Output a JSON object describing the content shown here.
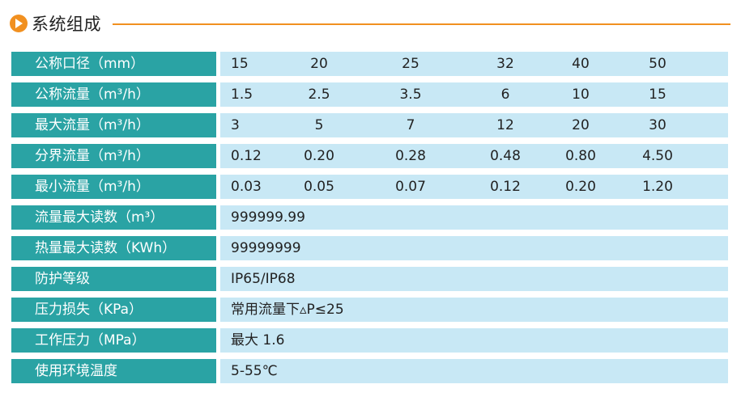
{
  "header": {
    "title": "系统组成",
    "accent_color": "#f19020",
    "icon": "play-circle-icon"
  },
  "table": {
    "label_bg": "#2aa3a4",
    "value_bg": "#c8e8f5",
    "rows": [
      {
        "label": "公称口径（mm）",
        "values": [
          "15",
          "20",
          "25",
          "32",
          "40",
          "50"
        ]
      },
      {
        "label": "公称流量（m³/h）",
        "values": [
          "1.5",
          "2.5",
          "3.5",
          "6",
          "10",
          "15"
        ]
      },
      {
        "label": "最大流量（m³/h）",
        "values": [
          "3",
          "5",
          "7",
          "12",
          "20",
          "30"
        ]
      },
      {
        "label": "分界流量（m³/h）",
        "values": [
          "0.12",
          "0.20",
          "0.28",
          "0.48",
          "0.80",
          "4.50"
        ]
      },
      {
        "label": "最小流量（m³/h）",
        "values": [
          "0.03",
          "0.05",
          "0.07",
          "0.12",
          "0.20",
          "1.20"
        ]
      },
      {
        "label": "流量最大读数（m³）",
        "value": "999999.99"
      },
      {
        "label": "热量最大读数（KWh）",
        "value": "99999999"
      },
      {
        "label": "防护等级",
        "value": "IP65/IP68"
      },
      {
        "label": "压力损失（KPa）",
        "value": "常用流量下▵P≤25"
      },
      {
        "label": "工作压力（MPa）",
        "value": "最大 1.6"
      },
      {
        "label": "使用环境温度",
        "value": "5-55℃"
      }
    ]
  }
}
